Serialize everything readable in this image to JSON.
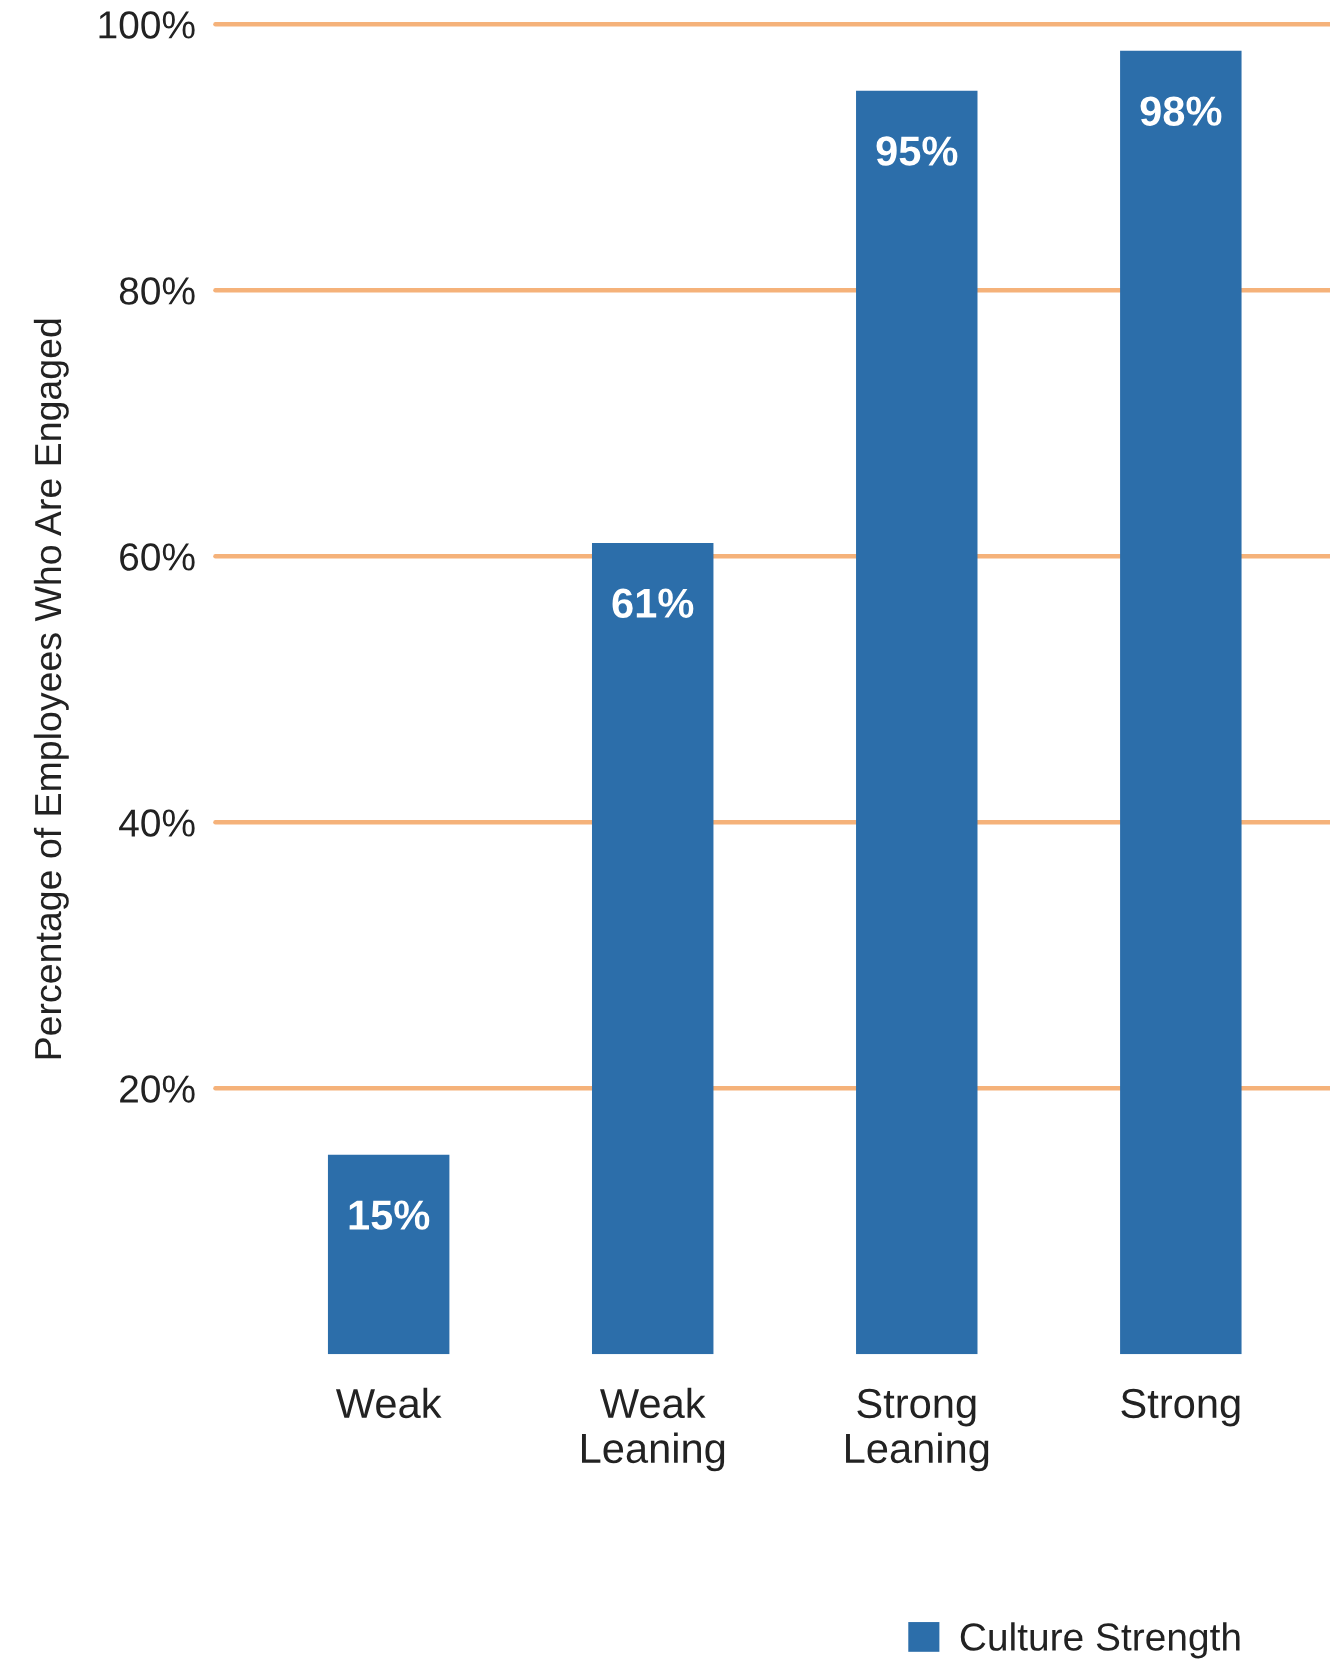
{
  "chart_data": {
    "type": "bar",
    "ylabel": "Percentage of Employees Who Are Engaged",
    "categories": [
      "Weak",
      "Weak\nLeaning",
      "Strong\nLeaning",
      "Strong"
    ],
    "series": [
      {
        "name": "Culture Strength",
        "color": "#2c6eaa",
        "values": [
          15,
          61,
          95,
          98
        ],
        "value_labels": [
          "15%",
          "61%",
          "95%",
          "98%"
        ]
      }
    ],
    "ylim": [
      0,
      100
    ],
    "yticks": [
      {
        "value": 20,
        "label": "20%"
      },
      {
        "value": 40,
        "label": "40%"
      },
      {
        "value": 60,
        "label": "60%"
      },
      {
        "value": 80,
        "label": "80%"
      },
      {
        "value": 100,
        "label": "100%"
      }
    ],
    "grid": "y",
    "legend": "bottom right"
  }
}
